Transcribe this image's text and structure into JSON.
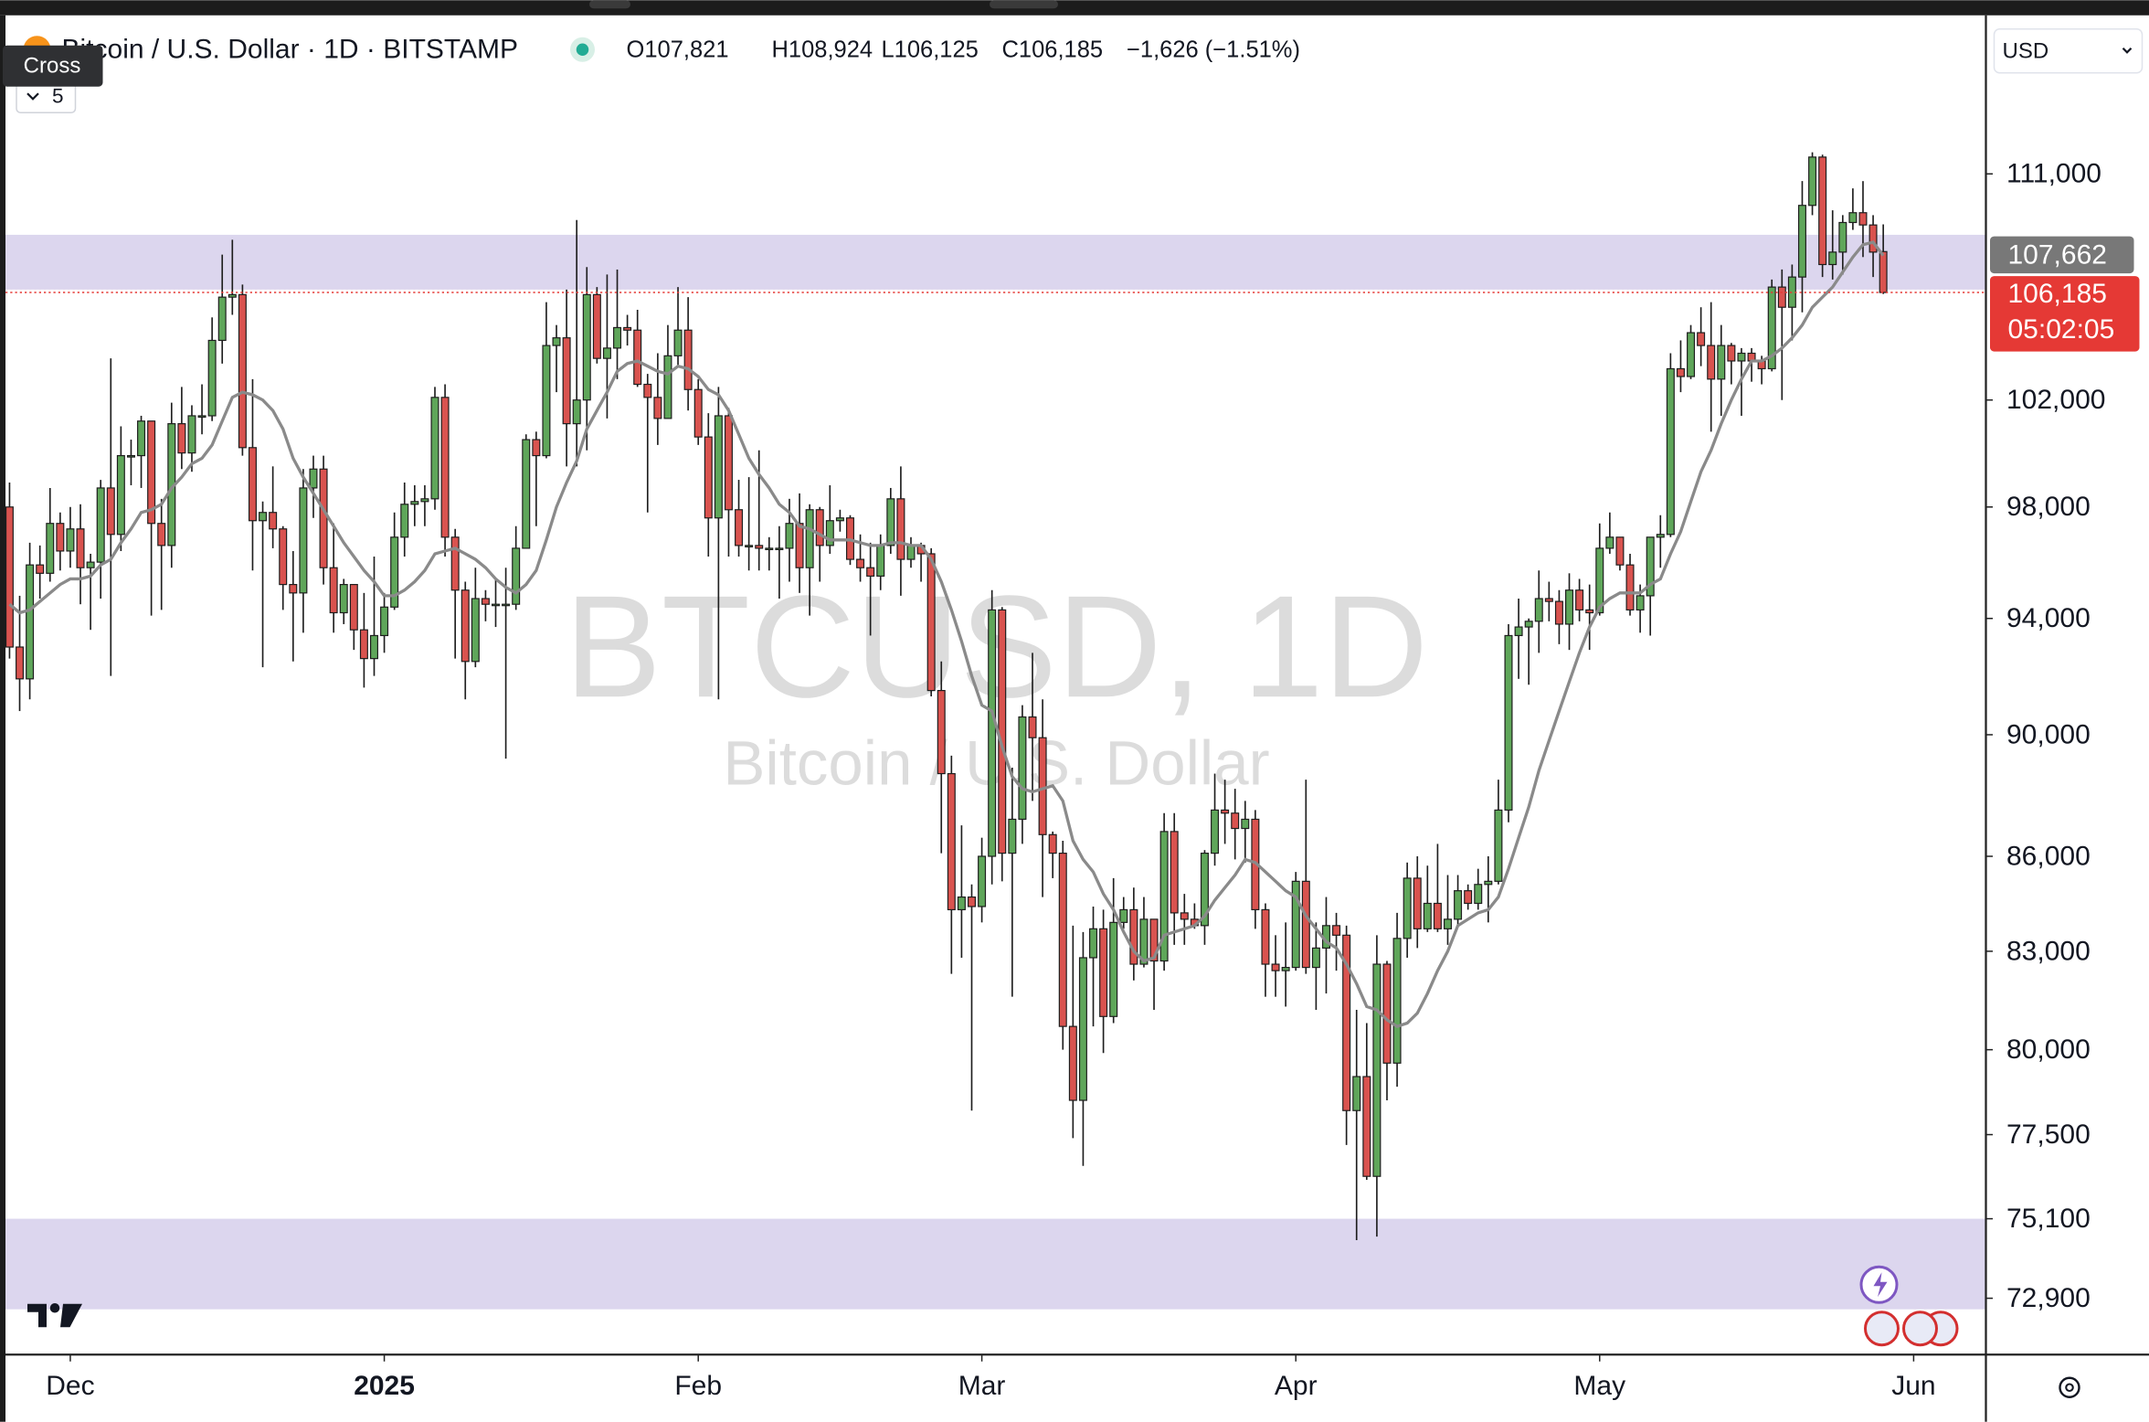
{
  "header": {
    "symbol": "Bitcoin / U.S. Dollar · 1D · BITSTAMP",
    "ohlc": [
      "O107,821",
      "H108,924",
      "L106,125",
      "C106,185"
    ],
    "change": "−1,626 (−1.51%)",
    "tooltip": "Cross",
    "indicators": "5",
    "currency": "USD"
  },
  "chart_data": {
    "type": "candlestick",
    "watermark": "BTCUSD, 1D",
    "watermark_subtitle": "Bitcoin / U.S. Dollar",
    "up_color": "#5fa65a",
    "down_color": "#d9534f",
    "log_scale": true,
    "ylim": [
      71380,
      117600
    ],
    "yticks": [
      {
        "value": 111000,
        "label": "111,000"
      },
      {
        "value": 102000,
        "label": "102,000"
      },
      {
        "value": 98000,
        "label": "98,000"
      },
      {
        "value": 94000,
        "label": "94,000"
      },
      {
        "value": 90000,
        "label": "90,000"
      },
      {
        "value": 86000,
        "label": "86,000"
      },
      {
        "value": 83000,
        "label": "83,000"
      },
      {
        "value": 80000,
        "label": "80,000"
      },
      {
        "value": 77500,
        "label": "77,500"
      },
      {
        "value": 75100,
        "label": "75,100"
      },
      {
        "value": 72900,
        "label": "72,900"
      }
    ],
    "xlim": [
      -0.4,
      195
    ],
    "xticks": [
      {
        "value": 6,
        "label": "Dec"
      },
      {
        "value": 37,
        "label": "2025"
      },
      {
        "value": 68,
        "label": "Feb"
      },
      {
        "value": 96,
        "label": "Mar"
      },
      {
        "value": 127,
        "label": "Apr"
      },
      {
        "value": 157,
        "label": "May"
      },
      {
        "value": 188,
        "label": "Jun"
      }
    ],
    "zones": [
      [
        106300,
        108500
      ],
      [
        72600,
        75100
      ]
    ],
    "zone_color": "#dcd6ee",
    "open": [
      98000,
      93000,
      91900,
      95900,
      95600,
      97400,
      96400,
      97200,
      95800,
      96000,
      98700,
      97000,
      99900,
      99900,
      101200,
      97400,
      96600,
      101100,
      100000,
      101400,
      101400,
      104300,
      106000,
      106100,
      100200,
      97500,
      97800,
      97200,
      95200,
      94900,
      98700,
      99400,
      95800,
      94200,
      95200,
      93600,
      92600,
      93400,
      94400,
      96900,
      98100,
      98200,
      98300,
      102100,
      96900,
      95000,
      92500,
      94700,
      94500,
      94500,
      94500,
      96500,
      100500,
      99900,
      104100,
      104400,
      101100,
      102000,
      106100,
      103600,
      104000,
      104800,
      104700,
      102600,
      102100,
      101300,
      103700,
      104700,
      102400,
      100600,
      97600,
      101400,
      97900,
      96600,
      96600,
      96500,
      96500,
      96500,
      97400,
      95800,
      97900,
      96600,
      97500,
      97600,
      96100,
      95800,
      95500,
      96600,
      98300,
      96100,
      96600,
      96300,
      91500,
      88700,
      84300,
      84700,
      84400,
      86000,
      94300,
      86100,
      87200,
      90600,
      89900,
      86700,
      86100,
      80700,
      78500,
      82800,
      83700,
      81000,
      83900,
      84300,
      82600,
      84000,
      82700,
      86800,
      84200,
      84000,
      83800,
      86100,
      87500,
      87400,
      86900,
      87200,
      84300,
      82600,
      82400,
      82500,
      85200,
      82500,
      83100,
      83800,
      83500,
      78200,
      79200,
      76300,
      82600,
      79600,
      83400,
      85300,
      83700,
      84500,
      83700,
      84000,
      84900,
      84500,
      85100,
      85200,
      87500,
      93400,
      93700,
      93900,
      94700,
      94600,
      93800,
      95000,
      94300,
      94200,
      96500,
      96900,
      95900,
      94300,
      94800,
      96900,
      97000,
      103200,
      102900,
      104600,
      104100,
      102800,
      104100,
      103500,
      103800,
      103500,
      103200,
      106400,
      105600,
      106800,
      109700,
      111700,
      107300,
      107800,
      109000,
      109400,
      108900,
      107821
    ],
    "high": [
      98900,
      94800,
      96700,
      96600,
      98700,
      97800,
      98000,
      98100,
      96300,
      99000,
      103600,
      101000,
      100500,
      101400,
      101200,
      98300,
      101900,
      102500,
      101800,
      102600,
      105200,
      107700,
      108300,
      106500,
      102800,
      98200,
      99500,
      97300,
      96400,
      99400,
      99900,
      99900,
      97400,
      95400,
      95200,
      94900,
      96200,
      94900,
      97800,
      98900,
      98800,
      98800,
      102500,
      102600,
      97200,
      95300,
      95800,
      95000,
      95400,
      95800,
      97300,
      100700,
      100800,
      105800,
      104900,
      106300,
      109100,
      107200,
      106400,
      106900,
      107100,
      105300,
      105500,
      103000,
      103800,
      104900,
      106400,
      106000,
      102800,
      101500,
      102500,
      101700,
      99000,
      99100,
      100100,
      96900,
      97300,
      98300,
      98500,
      98100,
      98000,
      98800,
      97900,
      97700,
      97000,
      96700,
      97000,
      98700,
      99500,
      96900,
      96700,
      96500,
      92500,
      89300,
      87000,
      85100,
      86600,
      95000,
      94400,
      88900,
      91000,
      92800,
      91200,
      86800,
      86500,
      83800,
      83600,
      84400,
      84300,
      85300,
      84700,
      85000,
      84700,
      84000,
      87400,
      87400,
      84800,
      84500,
      86200,
      88700,
      88500,
      88200,
      87800,
      87500,
      84500,
      83500,
      83900,
      85500,
      88500,
      83900,
      84700,
      84200,
      83800,
      81200,
      80800,
      83500,
      82700,
      84200,
      85800,
      86000,
      85700,
      86400,
      85400,
      85400,
      85100,
      85600,
      86000,
      88500,
      93800,
      94700,
      94000,
      95700,
      95300,
      95000,
      95600,
      95400,
      95200,
      97400,
      97800,
      96900,
      96300,
      95200,
      96900,
      97700,
      103800,
      104300,
      104900,
      105600,
      105800,
      104900,
      104200,
      104000,
      104000,
      103700,
      106700,
      107100,
      107300,
      110700,
      111900,
      111800,
      109500,
      109300,
      110400,
      110700,
      109300,
      108924
    ],
    "low": [
      92600,
      90800,
      91200,
      94700,
      95300,
      95700,
      95800,
      94500,
      93600,
      94700,
      92000,
      96400,
      98800,
      98700,
      94100,
      94300,
      95800,
      99400,
      99300,
      100700,
      101200,
      103400,
      105300,
      99900,
      95700,
      92300,
      96500,
      94300,
      92500,
      93500,
      97600,
      95200,
      93500,
      93800,
      92900,
      91600,
      92000,
      92800,
      94300,
      96200,
      97300,
      97300,
      97900,
      96200,
      92600,
      91200,
      92300,
      93900,
      93700,
      89200,
      94300,
      96500,
      97300,
      99800,
      102300,
      99500,
      99500,
      100100,
      103400,
      101300,
      102800,
      104100,
      102500,
      97800,
      100300,
      101300,
      103300,
      101600,
      100300,
      96200,
      91200,
      96200,
      96200,
      95700,
      95700,
      95700,
      94700,
      95300,
      94900,
      94100,
      95300,
      96300,
      97100,
      95900,
      95300,
      93400,
      95000,
      96300,
      94800,
      95800,
      95300,
      91300,
      86100,
      82300,
      82800,
      78200,
      83900,
      85100,
      85200,
      81600,
      86400,
      87800,
      84700,
      85300,
      80000,
      77400,
      76600,
      80700,
      79900,
      80800,
      83700,
      82100,
      82500,
      81200,
      82400,
      83200,
      83200,
      83700,
      83200,
      85700,
      86400,
      85900,
      85800,
      83700,
      81600,
      81600,
      81300,
      82400,
      82300,
      81200,
      81700,
      82400,
      77200,
      74500,
      76200,
      74600,
      78500,
      78900,
      82800,
      83100,
      83600,
      83600,
      83200,
      83800,
      84300,
      84300,
      83900,
      85100,
      87100,
      91900,
      91700,
      92800,
      93900,
      93100,
      92900,
      93900,
      92900,
      94100,
      96300,
      95700,
      94100,
      93500,
      93400,
      95800,
      96900,
      102300,
      102800,
      103300,
      100800,
      101400,
      102600,
      101400,
      102700,
      102600,
      103100,
      102000,
      104300,
      105400,
      109300,
      106800,
      106700,
      106900,
      108700,
      107600,
      106800,
      106125
    ],
    "close": [
      93000,
      91900,
      95900,
      95600,
      97400,
      96400,
      97200,
      95800,
      96000,
      98700,
      97000,
      99900,
      99900,
      101200,
      97400,
      96600,
      101100,
      100000,
      101400,
      101400,
      104300,
      106000,
      106100,
      100200,
      97500,
      97800,
      97200,
      95200,
      94900,
      98700,
      99400,
      95800,
      94200,
      95200,
      93600,
      92600,
      93400,
      94400,
      96900,
      98100,
      98200,
      98300,
      102100,
      96900,
      95000,
      92500,
      94700,
      94500,
      94500,
      94500,
      96500,
      100500,
      99900,
      104100,
      104400,
      101100,
      102000,
      106100,
      103600,
      104000,
      104800,
      104700,
      102600,
      102100,
      101300,
      103700,
      104700,
      102400,
      100600,
      97600,
      101400,
      97900,
      96600,
      96600,
      96500,
      96500,
      96500,
      97400,
      95800,
      97900,
      96600,
      97500,
      97600,
      96100,
      95800,
      95500,
      96600,
      98300,
      96100,
      96600,
      96300,
      91500,
      88700,
      84300,
      84700,
      84400,
      86000,
      94300,
      86100,
      87200,
      90600,
      89900,
      86700,
      86100,
      80700,
      78500,
      82800,
      83700,
      81000,
      83900,
      84300,
      82600,
      84000,
      82700,
      86800,
      84200,
      84000,
      83800,
      86100,
      87500,
      87400,
      86900,
      87200,
      84300,
      82600,
      82400,
      82500,
      85200,
      82500,
      83100,
      83800,
      83500,
      78200,
      79200,
      76300,
      82600,
      79600,
      83400,
      85300,
      83700,
      84500,
      83700,
      84000,
      84900,
      84500,
      85100,
      85200,
      87500,
      93400,
      93700,
      93900,
      94700,
      94600,
      93800,
      95000,
      94300,
      94200,
      96500,
      96900,
      95900,
      94300,
      94800,
      96900,
      97000,
      103200,
      102900,
      104600,
      104100,
      102800,
      104100,
      103500,
      103800,
      103500,
      103200,
      106400,
      105600,
      106800,
      109700,
      111700,
      107300,
      107800,
      109000,
      109400,
      108900,
      107800,
      106185
    ],
    "ma": {
      "color": "#8a8a8a",
      "last_label": "107,662",
      "values": [
        94500,
        94200,
        94300,
        94600,
        94900,
        95200,
        95400,
        95400,
        95500,
        95900,
        96100,
        96700,
        97200,
        97800,
        97900,
        98100,
        98700,
        99100,
        99600,
        99800,
        100300,
        101200,
        102100,
        102300,
        102200,
        102000,
        101600,
        100900,
        99800,
        99100,
        98500,
        97900,
        97300,
        96700,
        96200,
        95700,
        95300,
        94800,
        94800,
        95000,
        95300,
        95700,
        96300,
        96400,
        96500,
        96300,
        96100,
        95800,
        95400,
        95100,
        94900,
        95200,
        95700,
        96800,
        98000,
        98900,
        99700,
        100900,
        101600,
        102300,
        103100,
        103400,
        103500,
        103300,
        103100,
        103000,
        103300,
        103200,
        102900,
        102400,
        102200,
        101600,
        100700,
        99800,
        99200,
        98700,
        98100,
        97800,
        97300,
        97200,
        97000,
        96800,
        96800,
        96800,
        96700,
        96600,
        96600,
        96700,
        96700,
        96600,
        96600,
        96100,
        95300,
        94300,
        93200,
        92000,
        91000,
        90800,
        89600,
        88600,
        88200,
        88100,
        88200,
        88300,
        87800,
        86500,
        85900,
        85500,
        84800,
        84300,
        83600,
        83000,
        82700,
        82800,
        83500,
        83600,
        83700,
        83800,
        84100,
        84600,
        85000,
        85400,
        85900,
        85800,
        85500,
        85200,
        84900,
        84700,
        84100,
        83700,
        83300,
        83100,
        82600,
        82000,
        81300,
        81200,
        80900,
        80700,
        80800,
        81100,
        81700,
        82400,
        83000,
        83800,
        84000,
        84200,
        84300,
        84700,
        85600,
        86600,
        87600,
        88800,
        89800,
        90800,
        91800,
        92800,
        93700,
        94400,
        94700,
        94900,
        94900,
        94900,
        95200,
        95400,
        96300,
        97100,
        98200,
        99300,
        100100,
        101100,
        102000,
        102800,
        103500,
        103500,
        103700,
        104000,
        104400,
        104900,
        105600,
        106000,
        106400,
        107000,
        107600,
        108100,
        108200,
        107662
      ]
    },
    "last_price": {
      "value": 106185,
      "label": "106,185",
      "countdown": "05:02:05",
      "color": "#e53935"
    }
  }
}
